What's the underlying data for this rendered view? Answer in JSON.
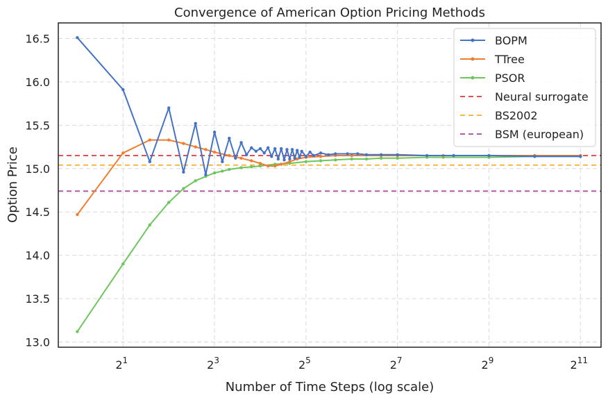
{
  "chart_data": {
    "type": "line",
    "title": "Convergence of American Option Pricing Methods",
    "xlabel": "Number of Time Steps (log scale)",
    "ylabel": "Option Price",
    "xscale": "log2",
    "xlim": [
      0.75,
      2800
    ],
    "ylim": [
      12.94,
      16.68
    ],
    "grid": true,
    "legend_position": "top-right",
    "x_ticks": [
      {
        "value": 2,
        "base": "2",
        "exp": "1"
      },
      {
        "value": 8,
        "base": "2",
        "exp": "3"
      },
      {
        "value": 32,
        "base": "2",
        "exp": "5"
      },
      {
        "value": 128,
        "base": "2",
        "exp": "7"
      },
      {
        "value": 512,
        "base": "2",
        "exp": "9"
      },
      {
        "value": 2048,
        "base": "2",
        "exp": "11"
      }
    ],
    "y_ticks": [
      "13.0",
      "13.5",
      "14.0",
      "14.5",
      "15.0",
      "15.5",
      "16.0",
      "16.5"
    ],
    "series": [
      {
        "name": "BOPM",
        "color": "#4472c4",
        "points": [
          [
            1,
            16.51
          ],
          [
            2,
            15.91
          ],
          [
            3,
            15.08
          ],
          [
            4,
            15.7
          ],
          [
            5,
            14.96
          ],
          [
            6,
            15.52
          ],
          [
            7,
            14.93
          ],
          [
            8,
            15.42
          ],
          [
            9,
            15.08
          ],
          [
            10,
            15.35
          ],
          [
            11,
            15.12
          ],
          [
            12,
            15.3
          ],
          [
            13,
            15.16
          ],
          [
            14,
            15.24
          ],
          [
            15,
            15.2
          ],
          [
            16,
            15.23
          ],
          [
            17,
            15.18
          ],
          [
            18,
            15.24
          ],
          [
            19,
            15.14
          ],
          [
            20,
            15.23
          ],
          [
            21,
            15.11
          ],
          [
            22,
            15.23
          ],
          [
            23,
            15.1
          ],
          [
            24,
            15.22
          ],
          [
            25,
            15.11
          ],
          [
            26,
            15.22
          ],
          [
            27,
            15.12
          ],
          [
            28,
            15.21
          ],
          [
            29,
            15.13
          ],
          [
            30,
            15.2
          ],
          [
            32,
            15.14
          ],
          [
            34,
            15.19
          ],
          [
            36,
            15.15
          ],
          [
            40,
            15.18
          ],
          [
            45,
            15.16
          ],
          [
            50,
            15.17
          ],
          [
            60,
            15.17
          ],
          [
            70,
            15.17
          ],
          [
            80,
            15.16
          ],
          [
            100,
            15.16
          ],
          [
            128,
            15.16
          ],
          [
            200,
            15.15
          ],
          [
            300,
            15.15
          ],
          [
            512,
            15.15
          ],
          [
            1024,
            15.14
          ],
          [
            2048,
            15.14
          ]
        ]
      },
      {
        "name": "TTree",
        "color": "#ed7d31",
        "points": [
          [
            1,
            14.47
          ],
          [
            2,
            15.18
          ],
          [
            3,
            15.33
          ],
          [
            4,
            15.33
          ],
          [
            5,
            15.29
          ],
          [
            6,
            15.25
          ],
          [
            7,
            15.22
          ],
          [
            8,
            15.19
          ],
          [
            10,
            15.15
          ],
          [
            12,
            15.12
          ],
          [
            14,
            15.09
          ],
          [
            16,
            15.06
          ],
          [
            18,
            15.03
          ],
          [
            20,
            15.03
          ],
          [
            22,
            15.05
          ],
          [
            25,
            15.08
          ],
          [
            28,
            15.11
          ],
          [
            32,
            15.13
          ],
          [
            40,
            15.14
          ],
          [
            50,
            15.15
          ],
          [
            64,
            15.15
          ],
          [
            100,
            15.15
          ],
          [
            128,
            15.15
          ],
          [
            256,
            15.15
          ],
          [
            512,
            15.15
          ],
          [
            1024,
            15.15
          ],
          [
            2048,
            15.15
          ]
        ]
      },
      {
        "name": "PSOR",
        "color": "#6cc65c",
        "points": [
          [
            1,
            13.12
          ],
          [
            2,
            13.9
          ],
          [
            3,
            14.35
          ],
          [
            4,
            14.61
          ],
          [
            5,
            14.77
          ],
          [
            6,
            14.86
          ],
          [
            7,
            14.91
          ],
          [
            8,
            14.95
          ],
          [
            9,
            14.97
          ],
          [
            10,
            14.99
          ],
          [
            12,
            15.01
          ],
          [
            14,
            15.02
          ],
          [
            16,
            15.03
          ],
          [
            20,
            15.05
          ],
          [
            25,
            15.06
          ],
          [
            32,
            15.08
          ],
          [
            40,
            15.09
          ],
          [
            50,
            15.1
          ],
          [
            64,
            15.11
          ],
          [
            80,
            15.11
          ],
          [
            100,
            15.12
          ],
          [
            128,
            15.12
          ],
          [
            200,
            15.13
          ],
          [
            256,
            15.13
          ],
          [
            512,
            15.13
          ],
          [
            1024,
            15.14
          ],
          [
            2048,
            15.14
          ]
        ]
      }
    ],
    "reference_lines": [
      {
        "name": "Neural surrogate",
        "value": 15.15,
        "color": "#e05050"
      },
      {
        "name": "BS2002",
        "value": 15.04,
        "color": "#f5b942"
      },
      {
        "name": "BSM (european)",
        "value": 14.74,
        "color": "#b05aa8"
      }
    ]
  }
}
